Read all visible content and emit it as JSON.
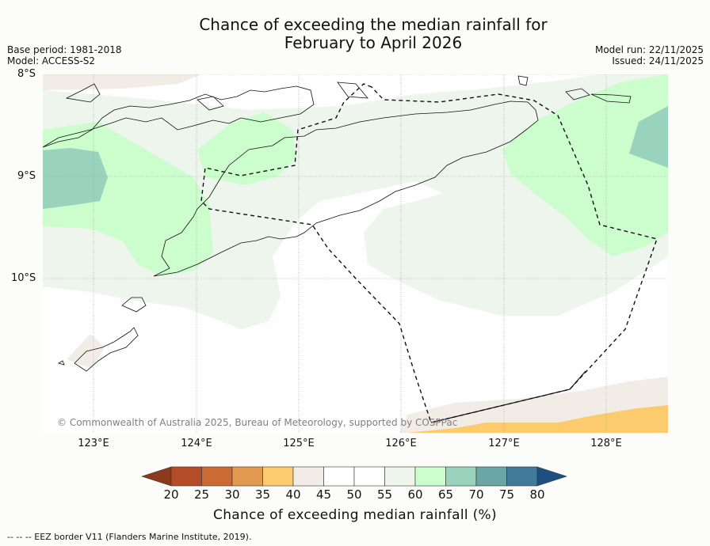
{
  "title": {
    "line1": "Chance of exceeding the median rainfall for",
    "line2": "February to April 2026"
  },
  "meta_left": {
    "base_period": "Base period: 1981-2018",
    "model": "Model: ACCESS-S2"
  },
  "meta_right": {
    "model_run": "Model run: 22/11/2025",
    "issued": "Issued: 24/11/2025"
  },
  "map": {
    "lat_labels": [
      "8°S",
      "9°S",
      "10°S"
    ],
    "lon_labels": [
      "123°E",
      "124°E",
      "125°E",
      "126°E",
      "127°E",
      "128°E"
    ],
    "lat_range": [
      -11.5,
      -8.0
    ],
    "lon_range": [
      122.5,
      128.6
    ],
    "copyright": "© Commonwealth of Australia 2025, Bureau of Meteorology, supported by COSPPac"
  },
  "colorbar": {
    "ticks": [
      "20",
      "25",
      "30",
      "35",
      "40",
      "45",
      "50",
      "55",
      "60",
      "65",
      "70",
      "75",
      "80"
    ],
    "colors": [
      "#8b3a1e",
      "#b34c27",
      "#cc6a34",
      "#e19a50",
      "#fccb6d",
      "#f2ece7",
      "#ffffff",
      "#ffffff",
      "#edf5ec",
      "#ccfdcc",
      "#99d2bd",
      "#6aa6a6",
      "#3f7a9b",
      "#1d4f82"
    ],
    "label": "Chance of exceeding median rainfall (%)"
  },
  "footer": "--  --  -- EEZ border V11 (Flanders Marine Institute, 2019)."
}
